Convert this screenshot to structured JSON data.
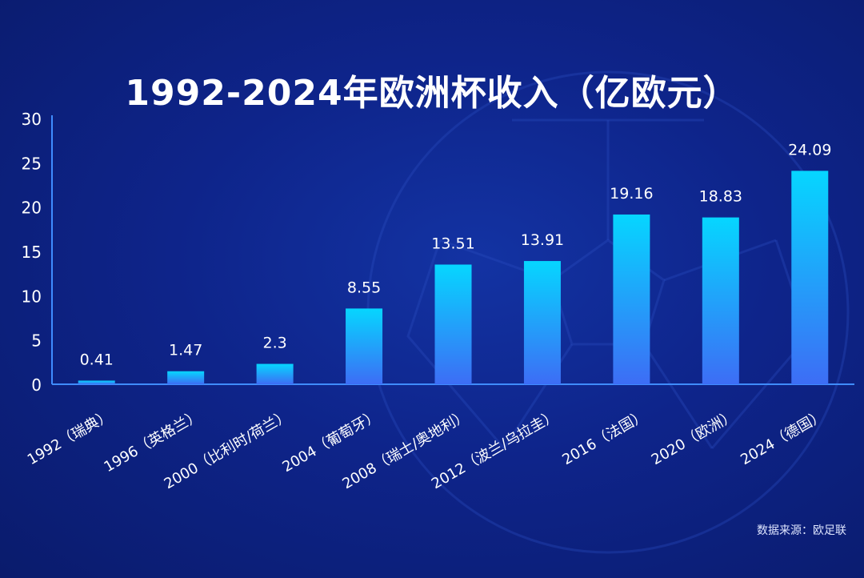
{
  "colors": {
    "background": "#0e248a",
    "bar_top": "#06d6ff",
    "bar_bottom": "#3d6df5",
    "axis": "#3f8cff",
    "text": "#ffffff"
  },
  "chart_data": {
    "type": "bar",
    "title": "1992-2024年欧洲杯收入（亿欧元）",
    "categories": [
      "1992（瑞典）",
      "1996（英格兰）",
      "2000（比利时/荷兰）",
      "2004（葡萄牙）",
      "2008（瑞士/奥地利）",
      "2012（波兰/乌拉圭）",
      "2016（法国）",
      "2020（欧洲）",
      "2024（德国）"
    ],
    "values": [
      0.41,
      1.47,
      2.3,
      8.55,
      13.51,
      13.91,
      19.16,
      18.83,
      24.09
    ],
    "data_labels": [
      "0.41",
      "1.47",
      "2.3",
      "8.55",
      "13.51",
      "13.91",
      "19.16",
      "18.83",
      "24.09"
    ],
    "ylim": [
      0,
      30
    ],
    "yticks": [
      "0",
      "5",
      "10",
      "15",
      "20",
      "25",
      "30"
    ],
    "xlabel": "",
    "ylabel": "",
    "grid": false,
    "legend": "none"
  },
  "source": "数据来源：欧足联"
}
